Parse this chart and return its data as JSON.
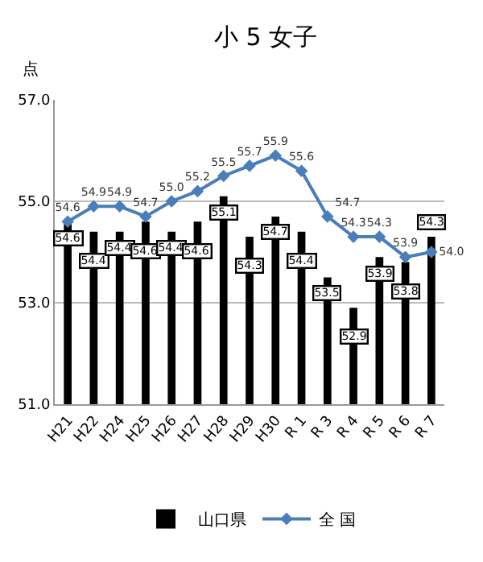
{
  "chart_data": {
    "type": "bar",
    "title": "小 5 女子",
    "ylabel": "点",
    "categories": [
      "H21",
      "H22",
      "H24",
      "H25",
      "H26",
      "H27",
      "H28",
      "H29",
      "H30",
      "R 1",
      "R 3",
      "R 4",
      "R 5",
      "R 6",
      "R 7"
    ],
    "series": [
      {
        "name": "山口県",
        "color": "#000000",
        "values": [
          54.6,
          54.4,
          54.4,
          54.6,
          54.4,
          54.6,
          55.1,
          54.3,
          54.7,
          54.4,
          53.5,
          52.9,
          53.9,
          53.8,
          54.3
        ],
        "value_labels": [
          "54.6",
          "54.4",
          "54.4",
          "54.6",
          "54.4",
          "54.6",
          "55.1",
          "54.3",
          "54.7",
          "54.4",
          "53.5",
          "52.9",
          "53.9",
          "53.8",
          "54.3"
        ]
      },
      {
        "name": "全 国",
        "type": "line",
        "color": "#4a7ebb",
        "marker": "diamond",
        "values": [
          54.6,
          54.9,
          54.9,
          54.7,
          55.0,
          55.2,
          55.5,
          55.7,
          55.9,
          55.6,
          54.7,
          54.3,
          54.3,
          53.9,
          54.0
        ],
        "value_labels": [
          "54.6",
          "54.9",
          "54.9",
          "54.7",
          "55.0",
          "55.2",
          "55.5",
          "55.7",
          "55.9",
          "55.6",
          "54.7",
          "54.3",
          "54.3",
          "53.9",
          "54.0"
        ]
      }
    ],
    "ylim": [
      51,
      57
    ],
    "yticks": [
      {
        "value": 51,
        "label": "51.0"
      },
      {
        "value": 53,
        "label": "53.0"
      },
      {
        "value": 55,
        "label": "55.0"
      },
      {
        "value": 57,
        "label": "57.0"
      }
    ],
    "grid": "y",
    "legend": "bottom"
  }
}
